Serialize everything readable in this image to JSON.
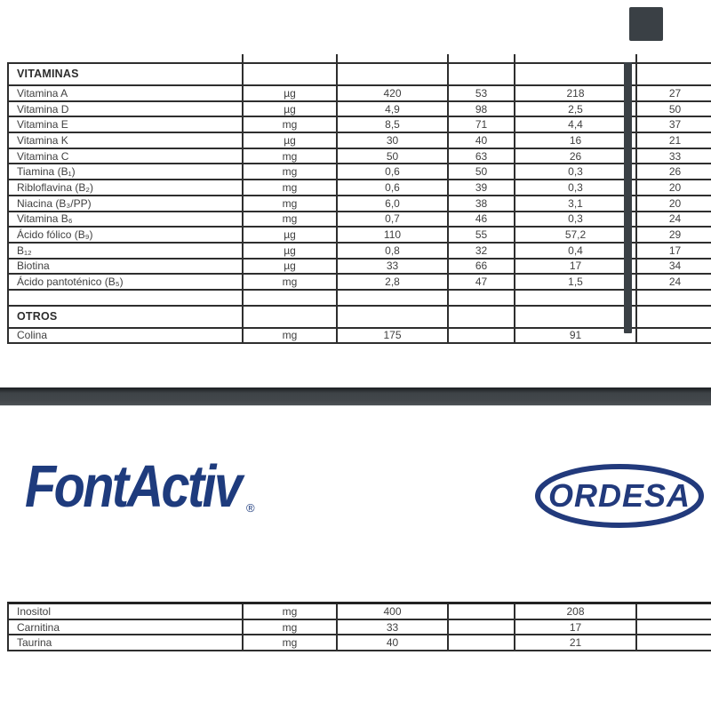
{
  "page": {
    "background": "#ffffff",
    "text_color": "#3f3f3f",
    "table_border_color": "#2e2e2e"
  },
  "decor": {
    "corner_square_color": "#3a4045",
    "scrollbar_color": "#3a4045",
    "divider_band": {
      "top_color": "#1f2326",
      "body_color": "#42474b",
      "shadow_color": "#d8dadb"
    }
  },
  "logos": {
    "fontactiv": {
      "text": "FontActiv",
      "registered": "®",
      "color": "#1e3b7d"
    },
    "ordesa": {
      "text": "ORDESA",
      "color": "#223a7c"
    }
  },
  "tables": {
    "vitamins": {
      "rows": [
        {
          "type": "section",
          "label": "VITAMINAS"
        },
        {
          "type": "data",
          "cells": [
            "Vitamina A",
            "µg",
            "420",
            "53",
            "218",
            "27"
          ]
        },
        {
          "type": "data",
          "cells": [
            "Vitamina D",
            "µg",
            "4,9",
            "98",
            "2,5",
            "50"
          ]
        },
        {
          "type": "data",
          "cells": [
            "Vitamina E",
            "mg",
            "8,5",
            "71",
            "4,4",
            "37"
          ]
        },
        {
          "type": "data",
          "cells": [
            "Vitamina K",
            "µg",
            "30",
            "40",
            "16",
            "21"
          ]
        },
        {
          "type": "data",
          "cells": [
            "Vitamina C",
            "mg",
            "50",
            "63",
            "26",
            "33"
          ]
        },
        {
          "type": "data",
          "cells": [
            "Tiamina (B₁)",
            "mg",
            "0,6",
            "50",
            "0,3",
            "26"
          ]
        },
        {
          "type": "data",
          "cells": [
            "Ribloflavina (B₂)",
            "mg",
            "0,6",
            "39",
            "0,3",
            "20"
          ]
        },
        {
          "type": "data",
          "cells": [
            "Niacina (B₃/PP)",
            "mg",
            "6,0",
            "38",
            "3,1",
            "20"
          ]
        },
        {
          "type": "data",
          "cells": [
            "Vitamina B₆",
            "mg",
            "0,7",
            "46",
            "0,3",
            "24"
          ]
        },
        {
          "type": "data",
          "cells": [
            "Ácido fólico (B₉)",
            "µg",
            "110",
            "55",
            "57,2",
            "29"
          ]
        },
        {
          "type": "data",
          "cells": [
            "B₁₂",
            "µg",
            "0,8",
            "32",
            "0,4",
            "17"
          ]
        },
        {
          "type": "data",
          "cells": [
            "Biotina",
            "µg",
            "33",
            "66",
            "17",
            "34"
          ]
        },
        {
          "type": "data",
          "cells": [
            "Ácido pantoténico (B₅)",
            "mg",
            "2,8",
            "47",
            "1,5",
            "24"
          ]
        },
        {
          "type": "empty"
        },
        {
          "type": "section",
          "label": "OTROS"
        },
        {
          "type": "data",
          "cells": [
            "Colina",
            "mg",
            "175",
            "",
            "91",
            ""
          ]
        }
      ]
    },
    "bottom": {
      "rows": [
        {
          "type": "data",
          "cells": [
            "Inositol",
            "mg",
            "400",
            "",
            "208",
            ""
          ]
        },
        {
          "type": "data",
          "cells": [
            "Carnitina",
            "mg",
            "33",
            "",
            "17",
            ""
          ]
        },
        {
          "type": "data",
          "cells": [
            "Taurina",
            "mg",
            "40",
            "",
            "21",
            ""
          ]
        }
      ]
    }
  }
}
